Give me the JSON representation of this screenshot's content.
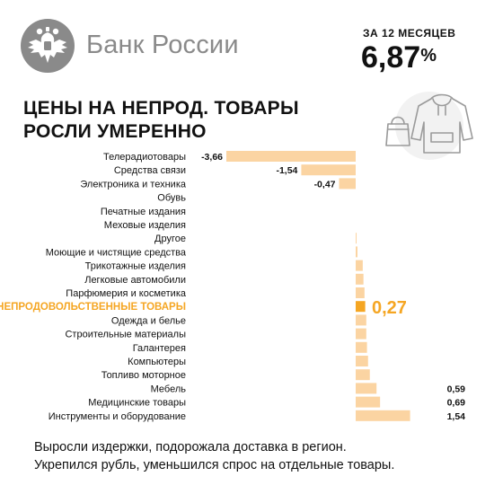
{
  "brand": {
    "name": "Банк России"
  },
  "kpi": {
    "label": "ЗА 12 МЕСЯЦЕВ",
    "value": "6,87",
    "unit": "%"
  },
  "headline": {
    "line1": "ЦЕНЫ НА НЕПРОД. ТОВАРЫ",
    "line2": "РОСЛИ УМЕРЕННО"
  },
  "colors": {
    "bar": "#fbd4a2",
    "bar_highlight": "#f5a623",
    "highlight_text": "#f5a623",
    "text": "#111111",
    "logo_gray": "#8a8a8a"
  },
  "icons": {
    "illustration": "handbag-and-hoodie-icon",
    "logo": "double-headed-eagle-emblem-icon"
  },
  "chart_data": {
    "type": "bar",
    "orientation": "horizontal",
    "title": "",
    "xlabel": "",
    "ylabel": "",
    "categories": [
      "Телерадиотовары",
      "Средства связи",
      "Электроника  и техника",
      "Обувь",
      "Печатные  издания",
      "Меховые  изделия",
      "Другое",
      "Моющие и чистящие средства",
      "Трикотажные  изделия",
      "Легковые автомобили",
      "Парфюмерия  и косметика",
      "НЕПРОДОВОЛЬСТВЕННЫЕ ТОВАРЫ",
      "Одежда и белье",
      "Строительные  материалы",
      "Галантерея",
      "Компьютеры",
      "Топливо  моторное",
      "Мебель",
      "Медицинские товары",
      "Инструменты  и оборудование"
    ],
    "values": [
      -3.66,
      -1.54,
      -0.47,
      0.0,
      0.0,
      0.0,
      0.02,
      0.05,
      0.2,
      0.22,
      0.25,
      0.27,
      0.3,
      0.3,
      0.32,
      0.35,
      0.4,
      0.59,
      0.69,
      1.54
    ],
    "value_labels": [
      "-3,66",
      "-1,54",
      "-0,47",
      "",
      "",
      "",
      "",
      "",
      "",
      "",
      "",
      "0,27",
      "",
      "",
      "",
      "",
      "",
      "0,59",
      "0,69",
      "1,54"
    ],
    "highlight_index": 11,
    "xlim": [
      -3.66,
      1.54
    ],
    "grid": false,
    "legend": "none"
  },
  "footnote": {
    "line1": "Выросли издержки, подорожала доставка в регион.",
    "line2": "Укрепился рубль, уменьшился  спрос на отдельные товары."
  }
}
